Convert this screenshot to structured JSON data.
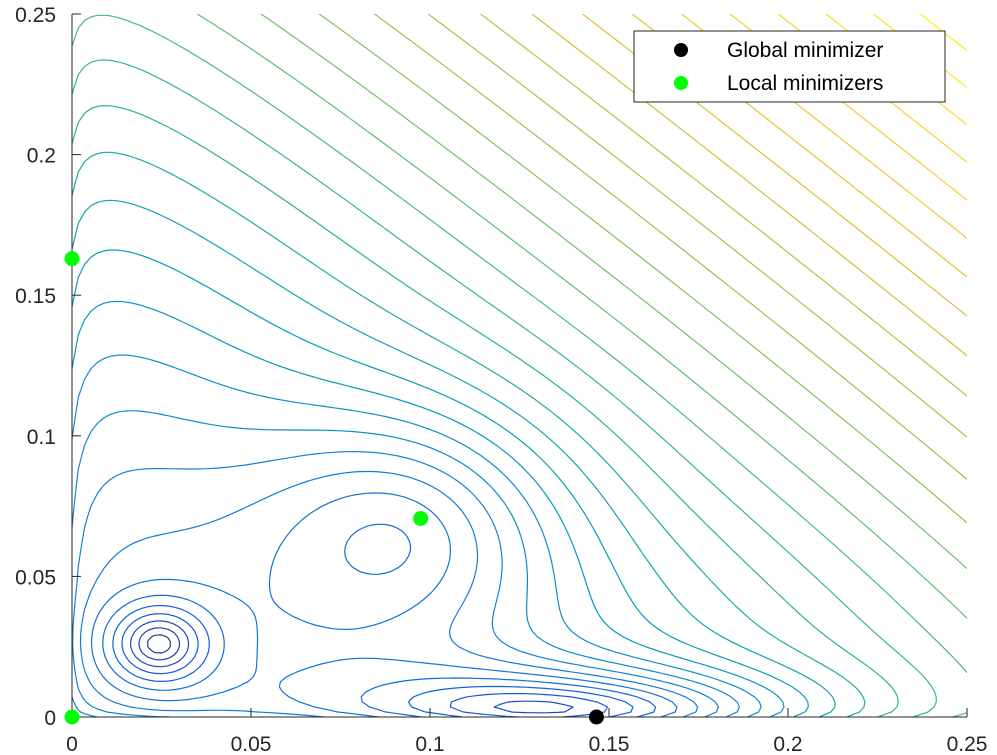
{
  "chart_data": {
    "type": "contour",
    "title": "",
    "xlabel": "",
    "ylabel": "",
    "xlim": [
      0,
      0.25
    ],
    "ylim": [
      0,
      0.25
    ],
    "x_ticks": [
      "0",
      "0.05",
      "0.1",
      "0.15",
      "0.2",
      "0.25"
    ],
    "y_ticks": [
      "0",
      "0.05",
      "0.1",
      "0.15",
      "0.2",
      "0.25"
    ],
    "grid": false,
    "colormap": "parula",
    "legend_position": "top-right",
    "series": [
      {
        "name": "Global minimizer",
        "type": "scatter",
        "color": "#000000",
        "points": [
          {
            "x": 0.1465,
            "y": 0.0
          }
        ]
      },
      {
        "name": "Local minimizers",
        "type": "scatter",
        "color": "#00ff00",
        "points": [
          {
            "x": 0.0,
            "y": 0.163
          },
          {
            "x": 0.0,
            "y": 0.0
          },
          {
            "x": 0.0974,
            "y": 0.0706
          }
        ]
      }
    ]
  }
}
